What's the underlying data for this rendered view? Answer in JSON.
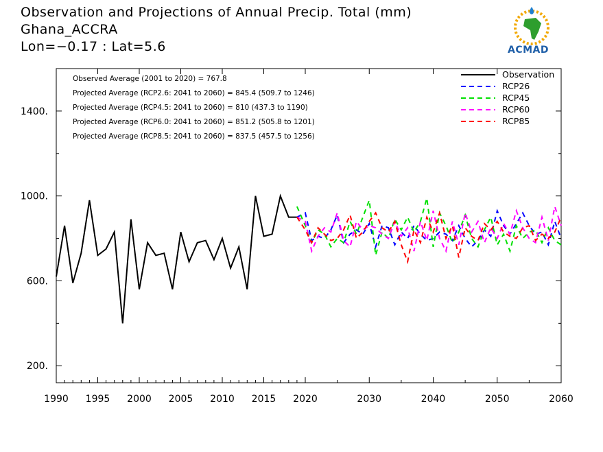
{
  "header": {
    "title": "Observation and Projections of Annual Precip. Total (mm)",
    "location": "Ghana_ACCRA",
    "coords": "Lon=−0.17 : Lat=5.6"
  },
  "logo": {
    "text": "ACMAD"
  },
  "chart_data": {
    "type": "line",
    "xlim": [
      1990,
      2060
    ],
    "ylim": [
      120,
      1600
    ],
    "x_ticks": [
      1990,
      1995,
      2000,
      2005,
      2010,
      2015,
      2020,
      2030,
      2040,
      2050,
      2060
    ],
    "x_tick_labels": [
      "1990",
      "1995",
      "2000",
      "2005",
      "2010",
      "2015",
      "2020",
      "2030",
      "2040",
      "2050",
      "2060"
    ],
    "y_ticks": [
      200,
      600,
      1000,
      1400
    ],
    "y_tick_labels": [
      "200.",
      "600.",
      "1000.",
      "1400."
    ],
    "legend_position": "top-right",
    "annotations": [
      "Observed Average (2001 to 2020) = 767.8",
      "Projected Average (RCP2.6: 2041 to 2060) = 845.4 (509.7 to 1246)",
      "Projected Average (RCP4.5: 2041 to 2060) = 810 (437.3 to 1190)",
      "Projected Average (RCP6.0: 2041 to 2060) = 851.2 (505.8 to 1201)",
      "Projected Average (RCP8.5: 2041 to 2060) = 837.5 (457.5 to 1256)"
    ],
    "series": [
      {
        "name": "Observation",
        "color": "#000000",
        "dashed": false,
        "x": [
          1990,
          1991,
          1992,
          1993,
          1994,
          1995,
          1996,
          1997,
          1998,
          1999,
          2000,
          2001,
          2002,
          2003,
          2004,
          2005,
          2006,
          2007,
          2008,
          2009,
          2010,
          2011,
          2012,
          2013,
          2014,
          2015,
          2016,
          2017,
          2018,
          2019
        ],
        "values": [
          620,
          860,
          590,
          730,
          980,
          720,
          750,
          830,
          400,
          890,
          560,
          780,
          720,
          730,
          560,
          830,
          690,
          780,
          790,
          700,
          800,
          660,
          760,
          560,
          1000,
          810,
          820,
          1000,
          900,
          900
        ]
      },
      {
        "name": "RCP26",
        "color": "#0000ff",
        "dashed": true,
        "x": [
          2019,
          2020,
          2021,
          2022,
          2023,
          2024,
          2025,
          2026,
          2027,
          2028,
          2029,
          2030,
          2031,
          2032,
          2033,
          2034,
          2035,
          2036,
          2037,
          2038,
          2039,
          2040,
          2041,
          2042,
          2043,
          2044,
          2045,
          2046,
          2047,
          2048,
          2049,
          2050,
          2051,
          2052,
          2053,
          2054,
          2055,
          2056,
          2057,
          2058,
          2059,
          2060
        ],
        "values": [
          900,
          920,
          790,
          810,
          800,
          840,
          910,
          780,
          820,
          840,
          820,
          870,
          760,
          860,
          850,
          770,
          830,
          800,
          860,
          820,
          790,
          800,
          830,
          820,
          790,
          860,
          800,
          760,
          790,
          840,
          810,
          930,
          860,
          820,
          870,
          920,
          860,
          820,
          830,
          770,
          880,
          800
        ]
      },
      {
        "name": "RCP45",
        "color": "#00e000",
        "dashed": true,
        "x": [
          2019,
          2020,
          2021,
          2022,
          2023,
          2024,
          2025,
          2026,
          2027,
          2028,
          2029,
          2030,
          2031,
          2032,
          2033,
          2034,
          2035,
          2036,
          2037,
          2038,
          2039,
          2040,
          2041,
          2042,
          2043,
          2044,
          2045,
          2046,
          2047,
          2048,
          2049,
          2050,
          2051,
          2052,
          2053,
          2054,
          2055,
          2056,
          2057,
          2058,
          2059,
          2060
        ],
        "values": [
          950,
          860,
          780,
          840,
          820,
          760,
          800,
          780,
          880,
          820,
          900,
          980,
          720,
          830,
          800,
          890,
          840,
          900,
          830,
          880,
          990,
          760,
          920,
          860,
          780,
          830,
          910,
          800,
          760,
          840,
          900,
          770,
          820,
          740,
          860,
          800,
          830,
          840,
          780,
          850,
          790,
          770
        ]
      },
      {
        "name": "RCP60",
        "color": "#ff00ff",
        "dashed": true,
        "x": [
          2019,
          2020,
          2021,
          2022,
          2023,
          2024,
          2025,
          2026,
          2027,
          2028,
          2029,
          2030,
          2031,
          2032,
          2033,
          2034,
          2035,
          2036,
          2037,
          2038,
          2039,
          2040,
          2041,
          2042,
          2043,
          2044,
          2045,
          2046,
          2047,
          2048,
          2049,
          2050,
          2051,
          2052,
          2053,
          2054,
          2055,
          2056,
          2057,
          2058,
          2059,
          2060
        ],
        "values": [
          900,
          880,
          740,
          810,
          850,
          830,
          920,
          790,
          760,
          880,
          840,
          860,
          850,
          820,
          800,
          880,
          810,
          850,
          740,
          880,
          790,
          930,
          800,
          740,
          880,
          770,
          920,
          830,
          880,
          780,
          850,
          800,
          870,
          820,
          930,
          850,
          800,
          780,
          900,
          790,
          950,
          860
        ]
      },
      {
        "name": "RCP85",
        "color": "#ff0000",
        "dashed": true,
        "x": [
          2019,
          2020,
          2021,
          2022,
          2023,
          2024,
          2025,
          2026,
          2027,
          2028,
          2029,
          2030,
          2031,
          2032,
          2033,
          2034,
          2035,
          2036,
          2037,
          2038,
          2039,
          2040,
          2041,
          2042,
          2043,
          2044,
          2045,
          2046,
          2047,
          2048,
          2049,
          2050,
          2051,
          2052,
          2053,
          2054,
          2055,
          2056,
          2057,
          2058,
          2059,
          2060
        ],
        "values": [
          900,
          840,
          780,
          850,
          820,
          790,
          800,
          840,
          910,
          800,
          830,
          880,
          920,
          850,
          830,
          880,
          770,
          690,
          840,
          780,
          900,
          830,
          920,
          800,
          860,
          710,
          850,
          810,
          790,
          870,
          840,
          880,
          830,
          810,
          800,
          850,
          860,
          790,
          820,
          800,
          830,
          900
        ]
      }
    ]
  }
}
